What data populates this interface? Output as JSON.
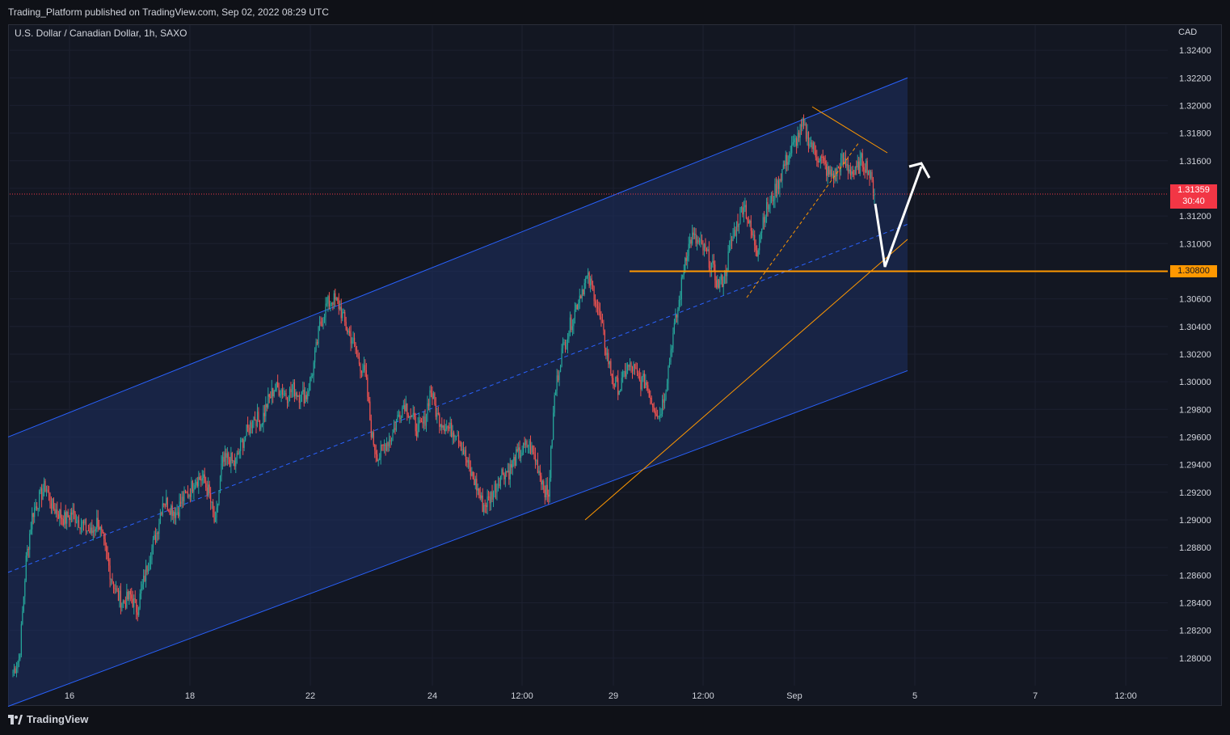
{
  "header": {
    "publisher_line": "Trading_Platform published on TradingView.com, Sep 02, 2022 08:29 UTC"
  },
  "chart_data": {
    "type": "candlestick",
    "symbol_line": "U.S. Dollar / Canadian Dollar, 1h, SAXO",
    "currency": "CAD",
    "y_axis": {
      "min": 1.278,
      "max": 1.325,
      "tick_labels": [
        "1.32400",
        "1.32200",
        "1.32000",
        "1.31800",
        "1.31600",
        "1.31400",
        "1.31200",
        "1.31000",
        "1.30800",
        "1.30600",
        "1.30400",
        "1.30200",
        "1.30000",
        "1.29800",
        "1.29600",
        "1.29400",
        "1.29200",
        "1.29000",
        "1.28800",
        "1.28600",
        "1.28400",
        "1.28200",
        "1.28000"
      ]
    },
    "x_axis": {
      "tick_labels": [
        "16",
        "18",
        "22",
        "24",
        "12:00",
        "29",
        "12:00",
        "Sep",
        "5",
        "7",
        "12:00"
      ]
    },
    "current_price": {
      "value": "1.31359",
      "countdown": "30:40",
      "color": "#f23645"
    },
    "level_price": {
      "value": "1.30800",
      "color": "#ff9800"
    },
    "path": [
      1.279,
      1.28,
      1.287,
      1.2905,
      1.2915,
      1.2925,
      1.291,
      1.2905,
      1.29,
      1.2905,
      1.29,
      1.2895,
      1.289,
      1.29,
      1.288,
      1.286,
      1.2845,
      1.284,
      1.2845,
      1.2835,
      1.2855,
      1.2875,
      1.289,
      1.2915,
      1.291,
      1.2905,
      1.2915,
      1.292,
      1.293,
      1.293,
      1.292,
      1.2895,
      1.294,
      1.2945,
      1.294,
      1.2955,
      1.2965,
      1.2975,
      1.297,
      1.2985,
      1.2995,
      1.2995,
      1.299,
      1.2995,
      1.299,
      1.299,
      1.301,
      1.304,
      1.3055,
      1.306,
      1.3055,
      1.304,
      1.303,
      1.3015,
      1.3005,
      1.296,
      1.2945,
      1.2955,
      1.296,
      1.2975,
      1.2985,
      1.2975,
      1.2965,
      1.297,
      1.2995,
      1.2975,
      1.297,
      1.2965,
      1.2965,
      1.295,
      1.2935,
      1.2925,
      1.291,
      1.2915,
      1.2925,
      1.2935,
      1.2935,
      1.2945,
      1.295,
      1.2955,
      1.2945,
      1.293,
      1.2915,
      1.299,
      1.302,
      1.3035,
      1.305,
      1.3065,
      1.3075,
      1.3065,
      1.3045,
      1.302,
      1.3,
      1.2995,
      1.301,
      1.301,
      1.3,
      1.3,
      1.2985,
      1.2975,
      1.2995,
      1.303,
      1.3055,
      1.309,
      1.3105,
      1.31,
      1.3095,
      1.3085,
      1.307,
      1.3075,
      1.31,
      1.3115,
      1.313,
      1.311,
      1.3095,
      1.312,
      1.313,
      1.314,
      1.3155,
      1.3165,
      1.3175,
      1.3185,
      1.3175,
      1.3165,
      1.316,
      1.315,
      1.315,
      1.316,
      1.3155,
      1.315,
      1.316,
      1.3155,
      1.3136
    ],
    "channel": {
      "upper": [
        [
          1.296,
          1.322
        ]
      ],
      "lower": [
        [
          1.2765,
          1.3008
        ]
      ],
      "mid": [
        [
          1.2862,
          1.3114
        ]
      ]
    },
    "horizontal_level": 1.308,
    "annotations": []
  }
}
